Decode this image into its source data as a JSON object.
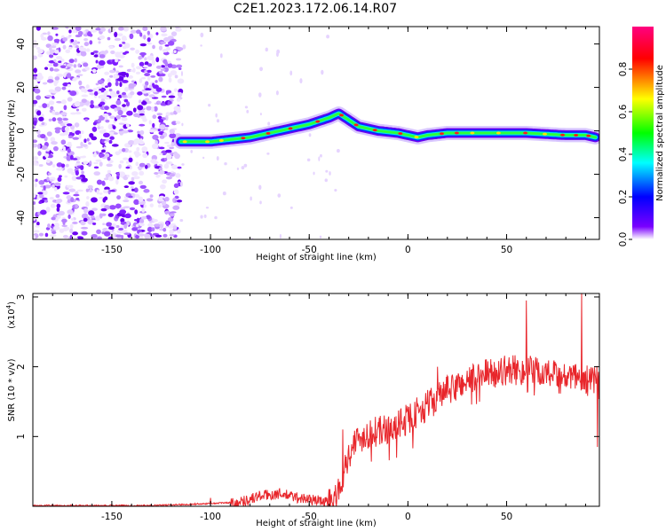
{
  "figure_title": "C2E1.2023.172.06.14.R07",
  "chart_data": [
    {
      "type": "heatmap",
      "xlabel": "Height of straight line (km)",
      "ylabel": "Frequency (Hz)",
      "xlim": [
        -190,
        97
      ],
      "ylim": [
        -50,
        48
      ],
      "xticks": [
        -150,
        -100,
        -50,
        0,
        50
      ],
      "yticks": [
        -40,
        -20,
        0,
        20,
        40
      ],
      "colorbar": {
        "label": "Normalized spectral amplitude",
        "range": [
          0.0,
          1.0
        ],
        "ticks": [
          "0.0",
          "0.2",
          "0.4",
          "0.6",
          "0.8"
        ],
        "colors": [
          "#ffffff",
          "#7a00ff",
          "#0000ff",
          "#00ffff",
          "#00ff00",
          "#ffff00",
          "#ff0000",
          "#ff0080"
        ]
      },
      "noise_region_x": [
        -190,
        -115
      ],
      "ridge": {
        "x": [
          -115,
          -100,
          -90,
          -80,
          -70,
          -60,
          -50,
          -40,
          -35,
          -30,
          -25,
          -15,
          -5,
          0,
          5,
          10,
          20,
          40,
          60,
          80,
          90,
          95
        ],
        "y": [
          -5,
          -5,
          -4,
          -3,
          -1,
          1,
          3,
          6,
          8,
          5,
          2,
          0,
          -1,
          -2,
          -3,
          -2,
          -1,
          -1,
          -1,
          -2,
          -2,
          -3
        ]
      }
    },
    {
      "type": "line",
      "xlabel": "Height of straight line (km)",
      "ylabel": "SNR (10 * v/v)",
      "y_multiplier": "(x10",
      "y_multiplier_exp": "4",
      "xlim": [
        -190,
        97
      ],
      "ylim": [
        0,
        3.05
      ],
      "xticks": [
        -150,
        -100,
        -50,
        0,
        50
      ],
      "yticks": [
        1,
        2,
        3
      ],
      "line_color": "#e8262b",
      "trend": {
        "x": [
          -190,
          -130,
          -100,
          -85,
          -75,
          -65,
          -55,
          -45,
          -38,
          -33,
          -28,
          -20,
          -10,
          0,
          10,
          20,
          30,
          40,
          50,
          60,
          70,
          80,
          90,
          97
        ],
        "y": [
          0.01,
          0.01,
          0.04,
          0.06,
          0.15,
          0.18,
          0.12,
          0.08,
          0.05,
          0.45,
          0.9,
          1.05,
          1.1,
          1.25,
          1.45,
          1.65,
          1.8,
          1.9,
          1.95,
          1.95,
          1.9,
          1.85,
          1.8,
          1.8
        ]
      },
      "spikes": [
        {
          "x": -100,
          "y": 0.12
        },
        {
          "x": -33,
          "y": 1.1
        },
        {
          "x": 15,
          "y": 2.0
        },
        {
          "x": 60,
          "y": 2.95
        },
        {
          "x": 88,
          "y": 3.05
        },
        {
          "x": 96,
          "y": 0.85
        }
      ]
    }
  ]
}
